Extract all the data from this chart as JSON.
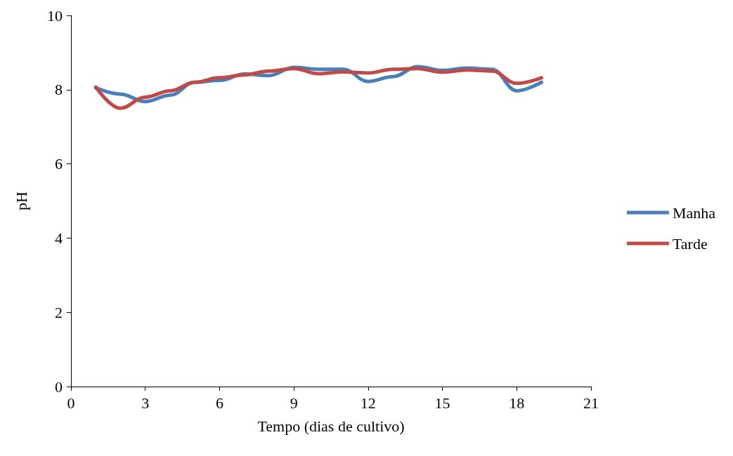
{
  "chart_data": {
    "type": "line",
    "xlabel": "Tempo (dias de cultivo)",
    "ylabel": "pH",
    "x": [
      1,
      2,
      3,
      4,
      5,
      6,
      7,
      8,
      9,
      10,
      11,
      12,
      13,
      14,
      15,
      16,
      17,
      18,
      19
    ],
    "series": [
      {
        "name": "Manha",
        "color": "#4a7ebb",
        "values": [
          8.05,
          7.88,
          7.68,
          7.85,
          8.2,
          8.25,
          8.42,
          8.38,
          8.6,
          8.55,
          8.55,
          8.22,
          8.35,
          8.62,
          8.52,
          8.58,
          8.55,
          7.97,
          8.2
        ]
      },
      {
        "name": "Tarde",
        "color": "#be4b48",
        "values": [
          8.07,
          7.5,
          7.8,
          7.97,
          8.2,
          8.32,
          8.4,
          8.5,
          8.57,
          8.43,
          8.48,
          8.45,
          8.55,
          8.57,
          8.47,
          8.53,
          8.5,
          8.17,
          8.32
        ]
      }
    ],
    "xlim": [
      0,
      21
    ],
    "xticks": [
      0,
      3,
      6,
      9,
      12,
      15,
      18,
      21
    ],
    "ylim": [
      0,
      10
    ],
    "yticks": [
      0,
      2,
      4,
      6,
      8,
      10
    ],
    "grid": false,
    "legend": "right",
    "marker": "none",
    "line_style": "solid"
  }
}
